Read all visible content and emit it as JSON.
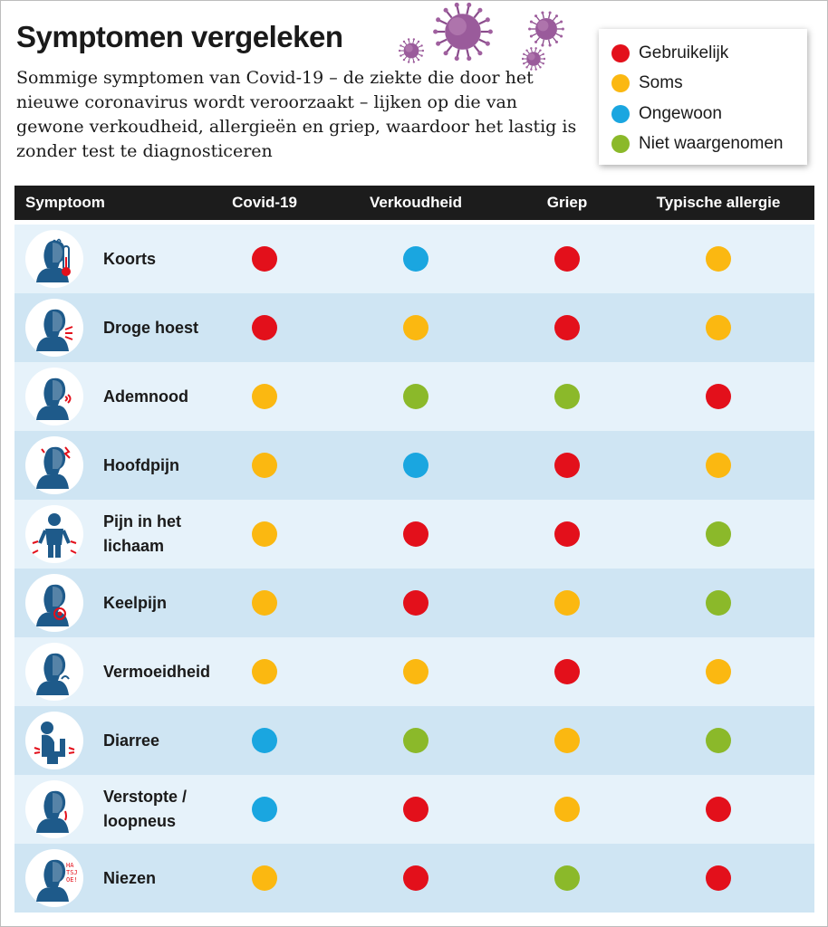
{
  "title": "Symptomen vergeleken",
  "intro": "Sommige symptomen van Covid-19 – de ziekte die door het nieuwe coronavirus wordt veroorzaakt – lijken op die van gewone verkoudheid, allergieën en griep, waardoor het lastig is zonder test te diagnosticeren",
  "legend": [
    {
      "key": "gebruikelijk",
      "label": "Gebruikelijk",
      "color": "#e3101b"
    },
    {
      "key": "soms",
      "label": "Soms",
      "color": "#fbb811"
    },
    {
      "key": "ongewoon",
      "label": "Ongewoon",
      "color": "#1aa6e0"
    },
    {
      "key": "niet",
      "label": "Niet waargenomen",
      "color": "#8bb92a"
    }
  ],
  "chart_data": {
    "type": "table",
    "columns": [
      "Symptoom",
      "Covid-19",
      "Verkoudheid",
      "Griep",
      "Typische allergie"
    ],
    "rows": [
      {
        "symptom": "Koorts",
        "icon": "fever-thermometer-icon",
        "values": [
          "gebruikelijk",
          "ongewoon",
          "gebruikelijk",
          "soms"
        ]
      },
      {
        "symptom": "Droge hoest",
        "icon": "cough-icon",
        "values": [
          "gebruikelijk",
          "soms",
          "gebruikelijk",
          "soms"
        ]
      },
      {
        "symptom": "Ademnood",
        "icon": "breathing-icon",
        "values": [
          "soms",
          "niet",
          "niet",
          "gebruikelijk"
        ]
      },
      {
        "symptom": "Hoofdpijn",
        "icon": "headache-icon",
        "values": [
          "soms",
          "ongewoon",
          "gebruikelijk",
          "soms"
        ]
      },
      {
        "symptom": "Pijn in het lichaam",
        "icon": "body-pain-icon",
        "values": [
          "soms",
          "gebruikelijk",
          "gebruikelijk",
          "niet"
        ]
      },
      {
        "symptom": "Keelpijn",
        "icon": "sore-throat-icon",
        "values": [
          "soms",
          "gebruikelijk",
          "soms",
          "niet"
        ]
      },
      {
        "symptom": "Vermoeidheid",
        "icon": "fatigue-icon",
        "values": [
          "soms",
          "soms",
          "gebruikelijk",
          "soms"
        ]
      },
      {
        "symptom": "Diarree",
        "icon": "diarrhea-icon",
        "values": [
          "ongewoon",
          "niet",
          "soms",
          "niet"
        ]
      },
      {
        "symptom": "Verstopte / loopneus",
        "icon": "runny-nose-icon",
        "values": [
          "ongewoon",
          "gebruikelijk",
          "soms",
          "gebruikelijk"
        ]
      },
      {
        "symptom": "Niezen",
        "icon": "sneeze-icon",
        "values": [
          "soms",
          "gebruikelijk",
          "niet",
          "gebruikelijk"
        ]
      }
    ]
  },
  "sneeze_text": "HA TSJ OE!"
}
